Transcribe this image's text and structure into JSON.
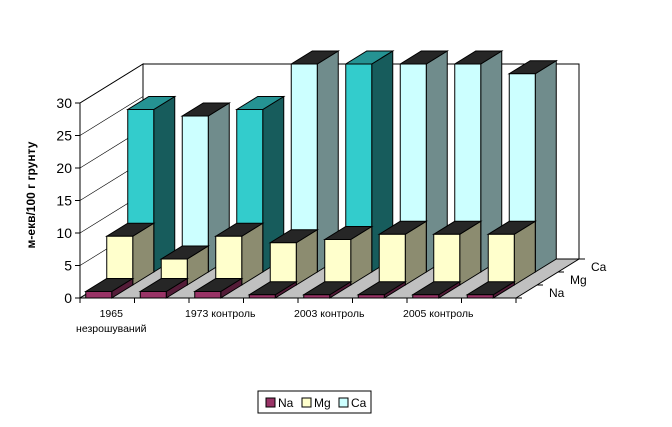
{
  "chart_data": {
    "type": "bar",
    "subtype": "3d-clustered-depth",
    "title": "",
    "xlabel": "",
    "ylabel": "м-екв/100 г грунту",
    "ylim": [
      0,
      30
    ],
    "yticks": [
      0,
      5,
      10,
      15,
      20,
      25,
      30
    ],
    "categories": [
      "1965 незрошуваний",
      "",
      "1973 контроль",
      "",
      "2003 контроль",
      "",
      "2005 контроль",
      ""
    ],
    "category_label_lines": [
      [
        "1965",
        "незрошуваний"
      ],
      [
        ""
      ],
      [
        "1973 контроль"
      ],
      [
        ""
      ],
      [
        "2003 контроль"
      ],
      [
        ""
      ],
      [
        "2005 контроль"
      ],
      [
        ""
      ]
    ],
    "depth_labels": [
      "Na",
      "Mg",
      "Ca"
    ],
    "legend_position": "bottom",
    "grid": false,
    "series": [
      {
        "name": "Na",
        "values": [
          1.0,
          1.0,
          1.0,
          0.5,
          0.5,
          0.5,
          0.5,
          0.5
        ],
        "color": "#993366"
      },
      {
        "name": "Mg",
        "values": [
          7.5,
          4.0,
          7.5,
          6.5,
          7.0,
          7.8,
          7.8,
          7.8
        ],
        "color": "#FFFFCC"
      },
      {
        "name": "Ca",
        "values": [
          25.0,
          24.0,
          25.0,
          32.0,
          32.0,
          32.0,
          32.0,
          30.5
        ],
        "color": "#CCFFFF"
      }
    ],
    "ca_face_colors": [
      "#33CCCC",
      "#CCFFFF",
      "#33CCCC",
      "#CCFFFF",
      "#33CCCC",
      "#CCFFFF",
      "#CCFFFF",
      "#CCFFFF"
    ]
  }
}
